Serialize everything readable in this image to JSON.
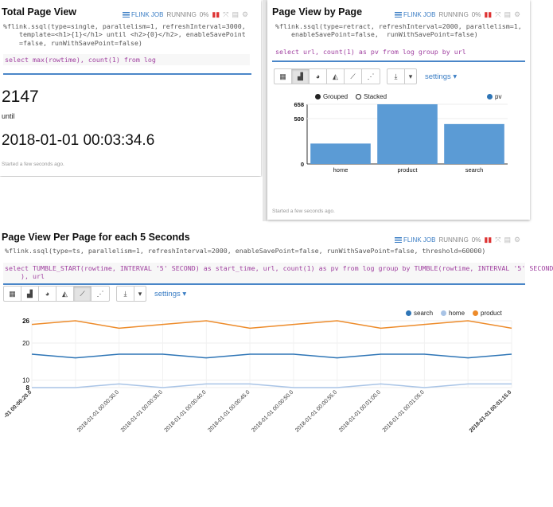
{
  "panels": {
    "total": {
      "title": "Total Page View",
      "status": {
        "job": "FLINK JOB",
        "state": "RUNNING",
        "progress": "0%"
      },
      "code": [
        "%flink.ssql(type=single, parallelism=1, refreshInterval=3000,",
        "    template=<h1>{1}</h1> until <h2>{0}</h2>, enableSavePoint",
        "    =false, runWithSavePoint=false)"
      ],
      "query": "select max(rowtime), count(1) from log",
      "value": "2147",
      "until_label": "until",
      "timestamp": "2018-01-01 00:03:34.6",
      "meta": "Started a few seconds ago."
    },
    "by_page": {
      "title": "Page View by Page",
      "status": {
        "job": "FLINK JOB",
        "state": "RUNNING",
        "progress": "0%"
      },
      "code": [
        "%flink.ssql(type=retract, refreshInterval=2000, parallelism=1,",
        "    enableSavePoint=false,  runWithSavePoint=false)"
      ],
      "query": "select url, count(1) as pv from log group by url",
      "settings_label": "settings",
      "legend": {
        "grouped": "Grouped",
        "stacked": "Stacked",
        "series": "pv"
      },
      "meta": "Started a few seconds ago."
    },
    "per_5s": {
      "title": "Page View Per Page for each 5 Seconds",
      "status": {
        "job": "FLINK JOB",
        "state": "RUNNING",
        "progress": "0%"
      },
      "code": [
        "%flink.ssql(type=ts, parallelism=1, refreshInterval=2000, enableSavePoint=false, runWithSavePoint=false, threshold=60000)"
      ],
      "query": [
        "select TUMBLE_START(rowtime, INTERVAL '5' SECOND) as start_time, url, count(1) as pv from log group by TUMBLE(rowtime, INTERVAL '5' SECOND",
        "    ), url"
      ],
      "settings_label": "settings",
      "legend": [
        "search",
        "home",
        "product"
      ]
    }
  },
  "colors": {
    "bar": "#5b9bd5",
    "search": "#2e75b6",
    "home": "#a9c4e6",
    "product": "#ed8b2a",
    "accent": "#3a7dc4"
  },
  "chart_data": [
    {
      "type": "bar",
      "categories": [
        "home",
        "product",
        "search"
      ],
      "values": [
        225,
        658,
        440
      ],
      "series": [
        {
          "name": "pv",
          "values": [
            225,
            658,
            440
          ]
        }
      ],
      "ytick_labels": [
        "0",
        "500",
        "658"
      ],
      "ylim": [
        0,
        658
      ],
      "legend": "top-right"
    },
    {
      "type": "line",
      "x": [
        "2018-01-01 00:00:20.0",
        "2018-01-01 00:00:25.0",
        "2018-01-01 00:00:30.0",
        "2018-01-01 00:00:35.0",
        "2018-01-01 00:00:40.0",
        "2018-01-01 00:00:45.0",
        "2018-01-01 00:00:50.0",
        "2018-01-01 00:00:55.0",
        "2018-01-01 00:01:00.0",
        "2018-01-01 00:01:05.0",
        "2018-01-01 00:01:10.0",
        "2018-01-01 00:01:15.0"
      ],
      "xtick_labels": [
        "-01 00:00:20.0",
        "2018-01-01 00:00:30.0",
        "2018-01-01 00:00:35.0",
        "2018-01-01 00:00:40.0",
        "2018-01-01 00:00:45.0",
        "2018-01-01 00:00:50.0",
        "2018-01-01 00:00:55.0",
        "2018-01-01 00:01:00.0",
        "2018-01-01 00:01:05.0",
        "2018-01-01 00:01:15.0"
      ],
      "xtick_index": [
        0,
        2,
        3,
        4,
        5,
        6,
        7,
        8,
        9,
        11
      ],
      "series": [
        {
          "name": "search",
          "values": [
            17,
            16,
            17,
            17,
            16,
            17,
            17,
            16,
            17,
            17,
            16,
            17
          ]
        },
        {
          "name": "home",
          "values": [
            8,
            8,
            9,
            8,
            9,
            9,
            8,
            8,
            9,
            8,
            9,
            9
          ]
        },
        {
          "name": "product",
          "values": [
            25,
            26,
            24,
            25,
            26,
            24,
            25,
            26,
            24,
            25,
            26,
            24
          ]
        }
      ],
      "ytick_labels": [
        "8",
        "10",
        "20",
        "26"
      ],
      "ylim": [
        8,
        26
      ],
      "grid": true,
      "legend": "top-right"
    }
  ]
}
